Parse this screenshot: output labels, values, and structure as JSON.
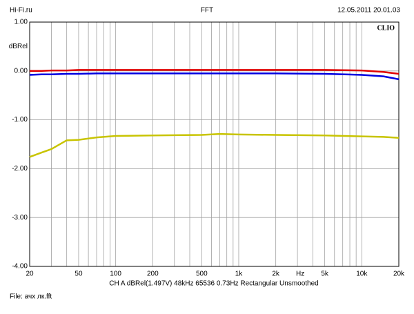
{
  "header": {
    "left": "Hi-Fi.ru",
    "center": "FFT",
    "right": "12.05.2011 20.01.03"
  },
  "chart_data": {
    "type": "line",
    "brand": "CLIO",
    "y_label": "dBRel",
    "x_unit_label": "Hz",
    "xscale": "log",
    "xlim": [
      20,
      20000
    ],
    "xticks": [
      20,
      50,
      100,
      200,
      500,
      {
        "value": 1000,
        "label": "1k"
      },
      {
        "value": 2000,
        "label": "2k"
      },
      {
        "value": 5000,
        "label": "5k"
      },
      {
        "value": 10000,
        "label": "10k"
      },
      {
        "value": 20000,
        "label": "20k"
      }
    ],
    "xminor": [
      30,
      40,
      60,
      70,
      80,
      90,
      300,
      400,
      600,
      700,
      800,
      900,
      3000,
      4000,
      6000,
      7000,
      8000,
      9000
    ],
    "ylim": [
      -4,
      1
    ],
    "yticks": [
      {
        "value": 1,
        "label": "1.00"
      },
      {
        "value": 0,
        "label": "0.00"
      },
      {
        "value": -1,
        "label": "-1.00"
      },
      {
        "value": -2,
        "label": "-2.00"
      },
      {
        "value": -3,
        "label": "-3.00"
      },
      {
        "value": -4,
        "label": "-4.00"
      }
    ],
    "grid": true,
    "x": [
      20,
      25,
      30,
      40,
      50,
      70,
      100,
      200,
      500,
      700,
      1000,
      2000,
      5000,
      10000,
      15000,
      20000
    ],
    "series": [
      {
        "color": "#e00000",
        "values": [
          0.0,
          0.0,
          0.01,
          0.01,
          0.02,
          0.02,
          0.02,
          0.02,
          0.02,
          0.02,
          0.02,
          0.02,
          0.02,
          0.01,
          -0.02,
          -0.06
        ]
      },
      {
        "color": "#0000e0",
        "values": [
          -0.08,
          -0.07,
          -0.07,
          -0.06,
          -0.06,
          -0.05,
          -0.05,
          -0.05,
          -0.05,
          -0.05,
          -0.05,
          -0.05,
          -0.06,
          -0.08,
          -0.11,
          -0.17
        ]
      },
      {
        "color": "#c8c400",
        "values": [
          -1.76,
          -1.67,
          -1.6,
          -1.42,
          -1.41,
          -1.36,
          -1.33,
          -1.32,
          -1.31,
          -1.29,
          -1.3,
          -1.31,
          -1.32,
          -1.34,
          -1.35,
          -1.37
        ]
      }
    ],
    "footer_settings": "CH A   dBRel(1.497V)   48kHz   65536   0.73Hz   Rectangular   Unsmoothed"
  },
  "file_label": "File: ачх лк.fft"
}
